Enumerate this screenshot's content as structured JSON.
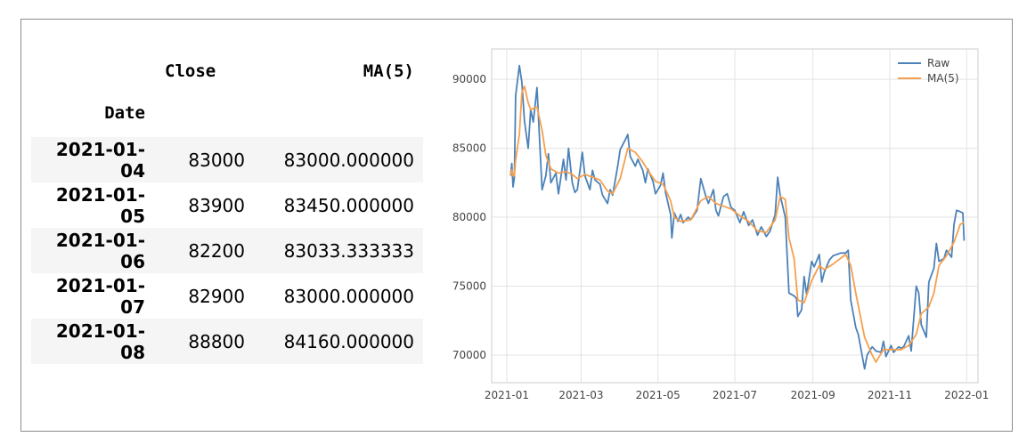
{
  "table": {
    "columns": [
      "Close",
      "MA(5)"
    ],
    "index_name": "Date",
    "rows": [
      {
        "date": "2021-01-04",
        "close": "83000",
        "ma": "83000.000000"
      },
      {
        "date": "2021-01-05",
        "close": "83900",
        "ma": "83450.000000"
      },
      {
        "date": "2021-01-06",
        "close": "82200",
        "ma": "83033.333333"
      },
      {
        "date": "2021-01-07",
        "close": "82900",
        "ma": "83000.000000"
      },
      {
        "date": "2021-01-08",
        "close": "88800",
        "ma": "84160.000000"
      }
    ]
  },
  "chart_data": {
    "type": "line",
    "xlabel": "",
    "ylabel": "",
    "ylim": [
      68000,
      92200
    ],
    "xlim": [
      "2020-12-20",
      "2022-01-10"
    ],
    "grid": true,
    "legend_position": "top-right",
    "x_ticks": [
      "2021-01",
      "2021-03",
      "2021-05",
      "2021-07",
      "2021-09",
      "2021-11",
      "2022-01"
    ],
    "y_ticks": [
      70000,
      75000,
      80000,
      85000,
      90000
    ],
    "series": [
      {
        "name": "Raw",
        "color": "#4c82b8",
        "points": [
          [
            "2021-01-04",
            83000
          ],
          [
            "2021-01-05",
            83900
          ],
          [
            "2021-01-06",
            82200
          ],
          [
            "2021-01-07",
            82900
          ],
          [
            "2021-01-08",
            88800
          ],
          [
            "2021-01-11",
            91000
          ],
          [
            "2021-01-13",
            89800
          ],
          [
            "2021-01-15",
            87000
          ],
          [
            "2021-01-18",
            85000
          ],
          [
            "2021-01-20",
            87800
          ],
          [
            "2021-01-22",
            86900
          ],
          [
            "2021-01-25",
            89400
          ],
          [
            "2021-01-27",
            85600
          ],
          [
            "2021-01-29",
            82000
          ],
          [
            "2021-02-01",
            83000
          ],
          [
            "2021-02-03",
            84600
          ],
          [
            "2021-02-05",
            82500
          ],
          [
            "2021-02-09",
            83200
          ],
          [
            "2021-02-11",
            81700
          ],
          [
            "2021-02-15",
            84200
          ],
          [
            "2021-02-17",
            82700
          ],
          [
            "2021-02-19",
            85000
          ],
          [
            "2021-02-22",
            82500
          ],
          [
            "2021-02-24",
            81800
          ],
          [
            "2021-02-26",
            82000
          ],
          [
            "2021-03-02",
            84700
          ],
          [
            "2021-03-04",
            83000
          ],
          [
            "2021-03-08",
            82000
          ],
          [
            "2021-03-10",
            83400
          ],
          [
            "2021-03-12",
            82700
          ],
          [
            "2021-03-16",
            82400
          ],
          [
            "2021-03-18",
            81600
          ],
          [
            "2021-03-22",
            81000
          ],
          [
            "2021-03-24",
            82000
          ],
          [
            "2021-03-26",
            81600
          ],
          [
            "2021-03-30",
            83700
          ],
          [
            "2021-04-01",
            84900
          ],
          [
            "2021-04-05",
            85600
          ],
          [
            "2021-04-07",
            86000
          ],
          [
            "2021-04-09",
            84400
          ],
          [
            "2021-04-13",
            83700
          ],
          [
            "2021-04-15",
            84200
          ],
          [
            "2021-04-19",
            83400
          ],
          [
            "2021-04-21",
            82500
          ],
          [
            "2021-04-23",
            83500
          ],
          [
            "2021-04-27",
            82600
          ],
          [
            "2021-04-29",
            81700
          ],
          [
            "2021-05-03",
            82300
          ],
          [
            "2021-05-05",
            83200
          ],
          [
            "2021-05-07",
            81800
          ],
          [
            "2021-05-11",
            80200
          ],
          [
            "2021-05-12",
            78500
          ],
          [
            "2021-05-14",
            80300
          ],
          [
            "2021-05-17",
            79700
          ],
          [
            "2021-05-19",
            80200
          ],
          [
            "2021-05-21",
            79600
          ],
          [
            "2021-05-25",
            80000
          ],
          [
            "2021-05-27",
            79800
          ],
          [
            "2021-06-01",
            80500
          ],
          [
            "2021-06-04",
            82800
          ],
          [
            "2021-06-08",
            81500
          ],
          [
            "2021-06-10",
            81000
          ],
          [
            "2021-06-14",
            82000
          ],
          [
            "2021-06-16",
            80500
          ],
          [
            "2021-06-18",
            80100
          ],
          [
            "2021-06-22",
            81500
          ],
          [
            "2021-06-25",
            81700
          ],
          [
            "2021-06-28",
            80700
          ],
          [
            "2021-07-01",
            80500
          ],
          [
            "2021-07-05",
            79600
          ],
          [
            "2021-07-08",
            80400
          ],
          [
            "2021-07-12",
            79400
          ],
          [
            "2021-07-15",
            79800
          ],
          [
            "2021-07-19",
            78700
          ],
          [
            "2021-07-22",
            79300
          ],
          [
            "2021-07-26",
            78600
          ],
          [
            "2021-07-29",
            79000
          ],
          [
            "2021-08-02",
            80200
          ],
          [
            "2021-08-04",
            82900
          ],
          [
            "2021-08-06",
            81600
          ],
          [
            "2021-08-10",
            80000
          ],
          [
            "2021-08-13",
            74500
          ],
          [
            "2021-08-17",
            74300
          ],
          [
            "2021-08-19",
            74100
          ],
          [
            "2021-08-20",
            72800
          ],
          [
            "2021-08-23",
            73300
          ],
          [
            "2021-08-25",
            75700
          ],
          [
            "2021-08-27",
            74400
          ],
          [
            "2021-08-31",
            76800
          ],
          [
            "2021-09-02",
            76400
          ],
          [
            "2021-09-06",
            77300
          ],
          [
            "2021-09-08",
            75300
          ],
          [
            "2021-09-10",
            76000
          ],
          [
            "2021-09-14",
            76900
          ],
          [
            "2021-09-17",
            77200
          ],
          [
            "2021-09-23",
            77400
          ],
          [
            "2021-09-27",
            77400
          ],
          [
            "2021-09-29",
            77600
          ],
          [
            "2021-10-01",
            74000
          ],
          [
            "2021-10-05",
            72000
          ],
          [
            "2021-10-07",
            71500
          ],
          [
            "2021-10-12",
            69000
          ],
          [
            "2021-10-14",
            70000
          ],
          [
            "2021-10-18",
            70600
          ],
          [
            "2021-10-21",
            70300
          ],
          [
            "2021-10-25",
            70200
          ],
          [
            "2021-10-27",
            71000
          ],
          [
            "2021-10-29",
            69900
          ],
          [
            "2021-11-02",
            70700
          ],
          [
            "2021-11-04",
            70200
          ],
          [
            "2021-11-08",
            70600
          ],
          [
            "2021-11-10",
            70500
          ],
          [
            "2021-11-12",
            70600
          ],
          [
            "2021-11-16",
            71400
          ],
          [
            "2021-11-18",
            70300
          ],
          [
            "2021-11-22",
            75000
          ],
          [
            "2021-11-24",
            74500
          ],
          [
            "2021-11-26",
            72200
          ],
          [
            "2021-11-30",
            71300
          ],
          [
            "2021-12-02",
            75300
          ],
          [
            "2021-12-06",
            76300
          ],
          [
            "2021-12-08",
            78100
          ],
          [
            "2021-12-10",
            76800
          ],
          [
            "2021-12-14",
            77000
          ],
          [
            "2021-12-16",
            77600
          ],
          [
            "2021-12-20",
            77100
          ],
          [
            "2021-12-22",
            79500
          ],
          [
            "2021-12-24",
            80500
          ],
          [
            "2021-12-27",
            80400
          ],
          [
            "2021-12-29",
            80300
          ],
          [
            "2021-12-30",
            78300
          ]
        ]
      },
      {
        "name": "MA(5)",
        "color": "#f5a04e",
        "points": [
          [
            "2021-01-04",
            83000
          ],
          [
            "2021-01-05",
            83450
          ],
          [
            "2021-01-06",
            83033
          ],
          [
            "2021-01-07",
            83000
          ],
          [
            "2021-01-08",
            84160
          ],
          [
            "2021-01-11",
            86000
          ],
          [
            "2021-01-13",
            89000
          ],
          [
            "2021-01-15",
            89500
          ],
          [
            "2021-01-18",
            88300
          ],
          [
            "2021-01-20",
            87800
          ],
          [
            "2021-01-25",
            88000
          ],
          [
            "2021-01-29",
            86300
          ],
          [
            "2021-02-01",
            84500
          ],
          [
            "2021-02-05",
            83500
          ],
          [
            "2021-02-11",
            83200
          ],
          [
            "2021-02-17",
            83300
          ],
          [
            "2021-02-22",
            83100
          ],
          [
            "2021-02-26",
            82800
          ],
          [
            "2021-03-04",
            83100
          ],
          [
            "2021-03-10",
            82900
          ],
          [
            "2021-03-16",
            82700
          ],
          [
            "2021-03-22",
            81900
          ],
          [
            "2021-03-26",
            81700
          ],
          [
            "2021-04-01",
            82800
          ],
          [
            "2021-04-07",
            85000
          ],
          [
            "2021-04-13",
            84700
          ],
          [
            "2021-04-19",
            84000
          ],
          [
            "2021-04-23",
            83400
          ],
          [
            "2021-04-29",
            82600
          ],
          [
            "2021-05-05",
            82400
          ],
          [
            "2021-05-11",
            81200
          ],
          [
            "2021-05-14",
            80000
          ],
          [
            "2021-05-19",
            79700
          ],
          [
            "2021-05-27",
            79800
          ],
          [
            "2021-06-04",
            81200
          ],
          [
            "2021-06-10",
            81500
          ],
          [
            "2021-06-16",
            81000
          ],
          [
            "2021-06-22",
            80800
          ],
          [
            "2021-06-28",
            80600
          ],
          [
            "2021-07-05",
            80100
          ],
          [
            "2021-07-12",
            79700
          ],
          [
            "2021-07-19",
            79000
          ],
          [
            "2021-07-26",
            78900
          ],
          [
            "2021-08-02",
            79800
          ],
          [
            "2021-08-06",
            81500
          ],
          [
            "2021-08-10",
            81300
          ],
          [
            "2021-08-13",
            78500
          ],
          [
            "2021-08-17",
            77000
          ],
          [
            "2021-08-20",
            74000
          ],
          [
            "2021-08-25",
            73800
          ],
          [
            "2021-08-31",
            75400
          ],
          [
            "2021-09-06",
            76500
          ],
          [
            "2021-09-10",
            76200
          ],
          [
            "2021-09-17",
            76600
          ],
          [
            "2021-09-27",
            77300
          ],
          [
            "2021-10-01",
            76500
          ],
          [
            "2021-10-05",
            74500
          ],
          [
            "2021-10-12",
            71300
          ],
          [
            "2021-10-18",
            70000
          ],
          [
            "2021-10-21",
            69500
          ],
          [
            "2021-10-27",
            70400
          ],
          [
            "2021-11-04",
            70400
          ],
          [
            "2021-11-10",
            70400
          ],
          [
            "2021-11-16",
            70700
          ],
          [
            "2021-11-22",
            71500
          ],
          [
            "2021-11-26",
            73000
          ],
          [
            "2021-12-02",
            73500
          ],
          [
            "2021-12-06",
            74500
          ],
          [
            "2021-12-10",
            76500
          ],
          [
            "2021-12-16",
            77200
          ],
          [
            "2021-12-22",
            78200
          ],
          [
            "2021-12-27",
            79500
          ],
          [
            "2021-12-30",
            79600
          ]
        ]
      }
    ]
  }
}
